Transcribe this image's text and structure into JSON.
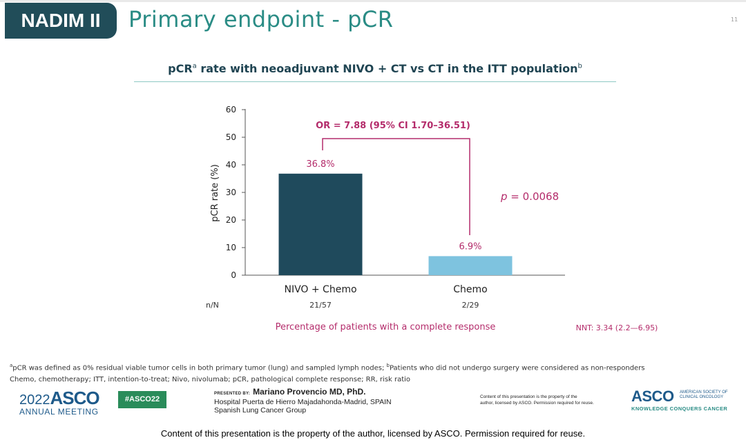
{
  "header": {
    "study_label": "NADIM II",
    "title": "Primary endpoint - pCR",
    "slide_number": "11"
  },
  "chart_title": {
    "lead": "pCR",
    "lead_sup": "a",
    "main": " rate with neoadjuvant NIVO + CT vs CT in the ITT population",
    "main_sup": "b"
  },
  "chart_data": {
    "type": "bar",
    "ylabel": "pCR rate (%)",
    "ylim": [
      0,
      60
    ],
    "y_ticks": [
      "0",
      "10",
      "20",
      "30",
      "40",
      "50",
      "60"
    ],
    "categories": [
      "NIVO + Chemo",
      "Chemo"
    ],
    "values": [
      36.8,
      6.9
    ],
    "value_labels": [
      "36.8%",
      "6.9%"
    ],
    "colors": [
      "#1f4a5c",
      "#7ec3df"
    ],
    "n_label": "n/N",
    "n_values": [
      "21/57",
      "2/29"
    ],
    "xlabel": "Percentage of patients with a complete response",
    "comparison": "OR = 7.88 (95% CI 1.70–36.51)",
    "p_label": "p",
    "p_value": " = 0.0068",
    "nnt": "NNT: 3.34 (2.2—6.95)",
    "grid": false
  },
  "footnote": {
    "line1_sup_a": "a",
    "line1_a": "pCR was defined as 0% residual viable tumor cells in both primary tumor (lung) and sampled lymph nodes; ",
    "line1_sup_b": "b",
    "line1_b": "Patients who did not undergo surgery were considered as non-responders",
    "line2": "Chemo, chemotherapy; ITT, intention-to-treat; Nivo, nivolumab; pCR, pathological complete response; RR, risk ratio"
  },
  "footer": {
    "asco_year": "2022",
    "asco_brand": "ASCO",
    "asco_meeting": "ANNUAL MEETING",
    "hashtag": "#ASCO22",
    "presented_by": "PRESENTED BY:",
    "presenter_name": "Mariano Provencio MD, PhD.",
    "affiliation1": "Hospital Puerta de Hierro Majadahonda-Madrid, SPAIN",
    "affiliation2": "Spanish Lung Cancer Group",
    "rights_line1": "Content of this presentation is the property of the",
    "rights_line2": "author, licensed by ASCO. Permission required for reuse.",
    "society_brand": "ASCO",
    "society_line1": "AMERICAN SOCIETY OF",
    "society_line2": "CLINICAL ONCOLOGY",
    "society_tagline": "KNOWLEDGE CONQUERS CANCER",
    "banner": "Content of this presentation is the property of the author, licensed by ASCO. Permission required for reuse."
  }
}
